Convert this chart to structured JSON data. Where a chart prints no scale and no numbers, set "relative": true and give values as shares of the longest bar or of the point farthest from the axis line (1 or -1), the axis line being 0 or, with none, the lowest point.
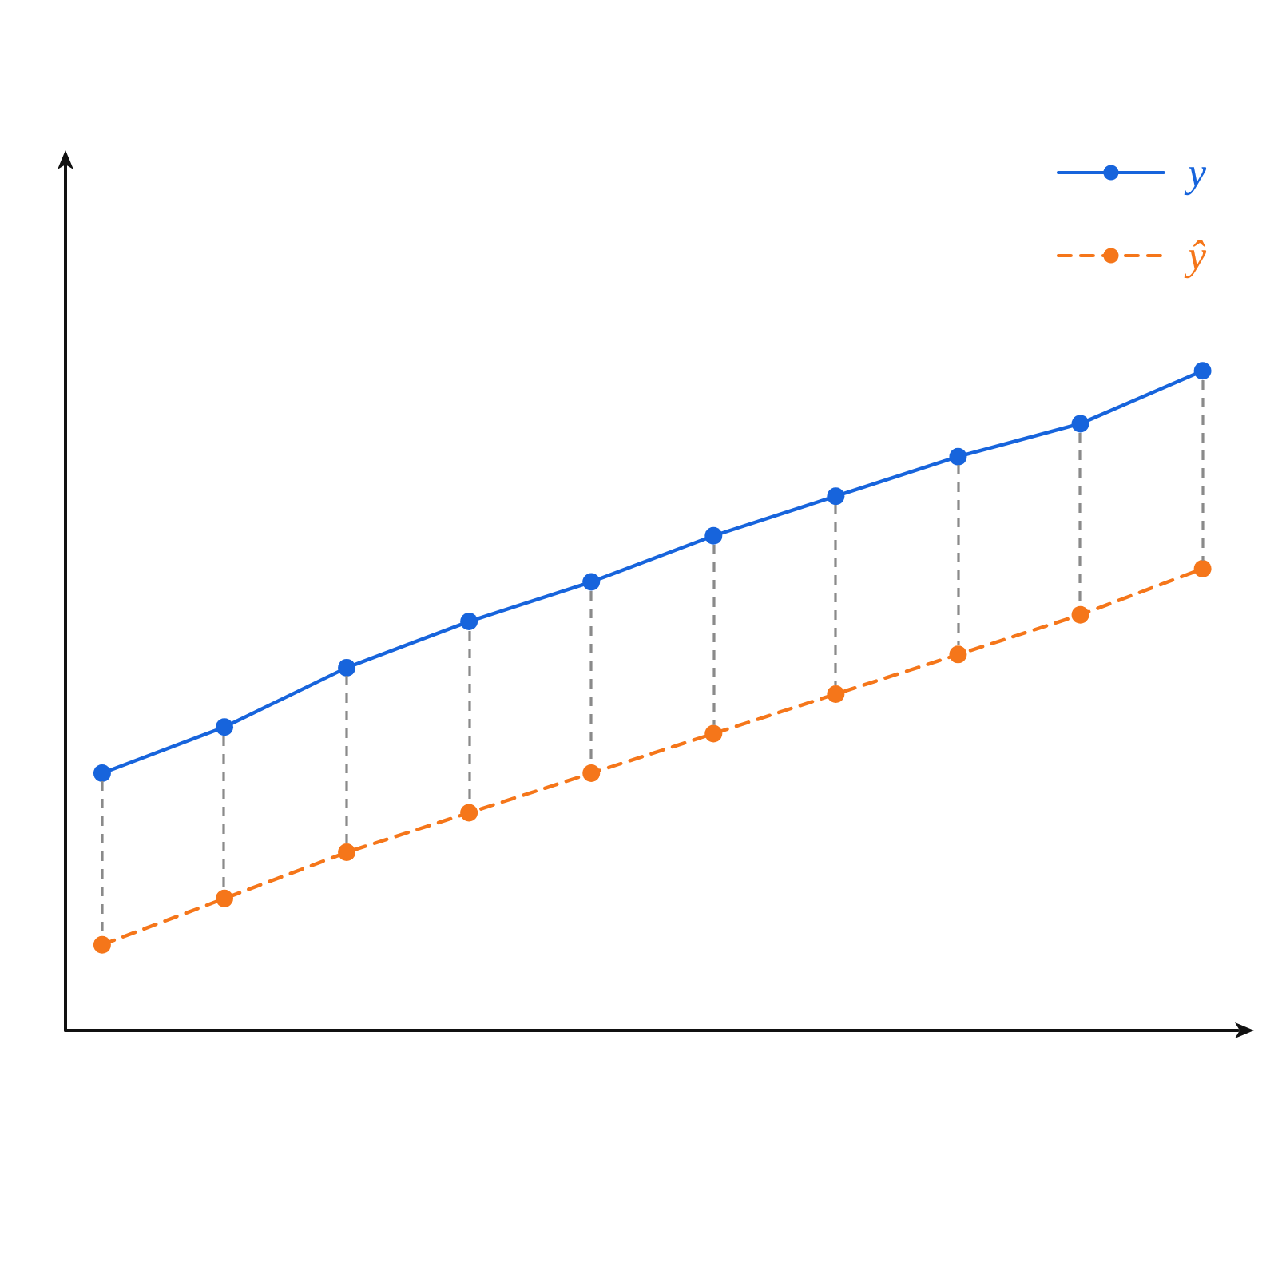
{
  "chart_data": {
    "type": "line",
    "relative": true,
    "categories": [
      null,
      null,
      null,
      null,
      null,
      null,
      null,
      null,
      null,
      null
    ],
    "series": [
      {
        "name": "y",
        "color": "#1764dc",
        "line_style": "solid",
        "values": [
          0.39,
          0.46,
          0.55,
          0.62,
          0.68,
          0.75,
          0.81,
          0.87,
          0.92,
          1
        ]
      },
      {
        "name": "ŷ",
        "color": "#f5761a",
        "line_style": "dashed",
        "values": [
          0.13,
          0.2,
          0.27,
          0.33,
          0.39,
          0.45,
          0.51,
          0.57,
          0.63,
          0.7
        ]
      }
    ],
    "marker": "circle",
    "legend": "top right"
  }
}
